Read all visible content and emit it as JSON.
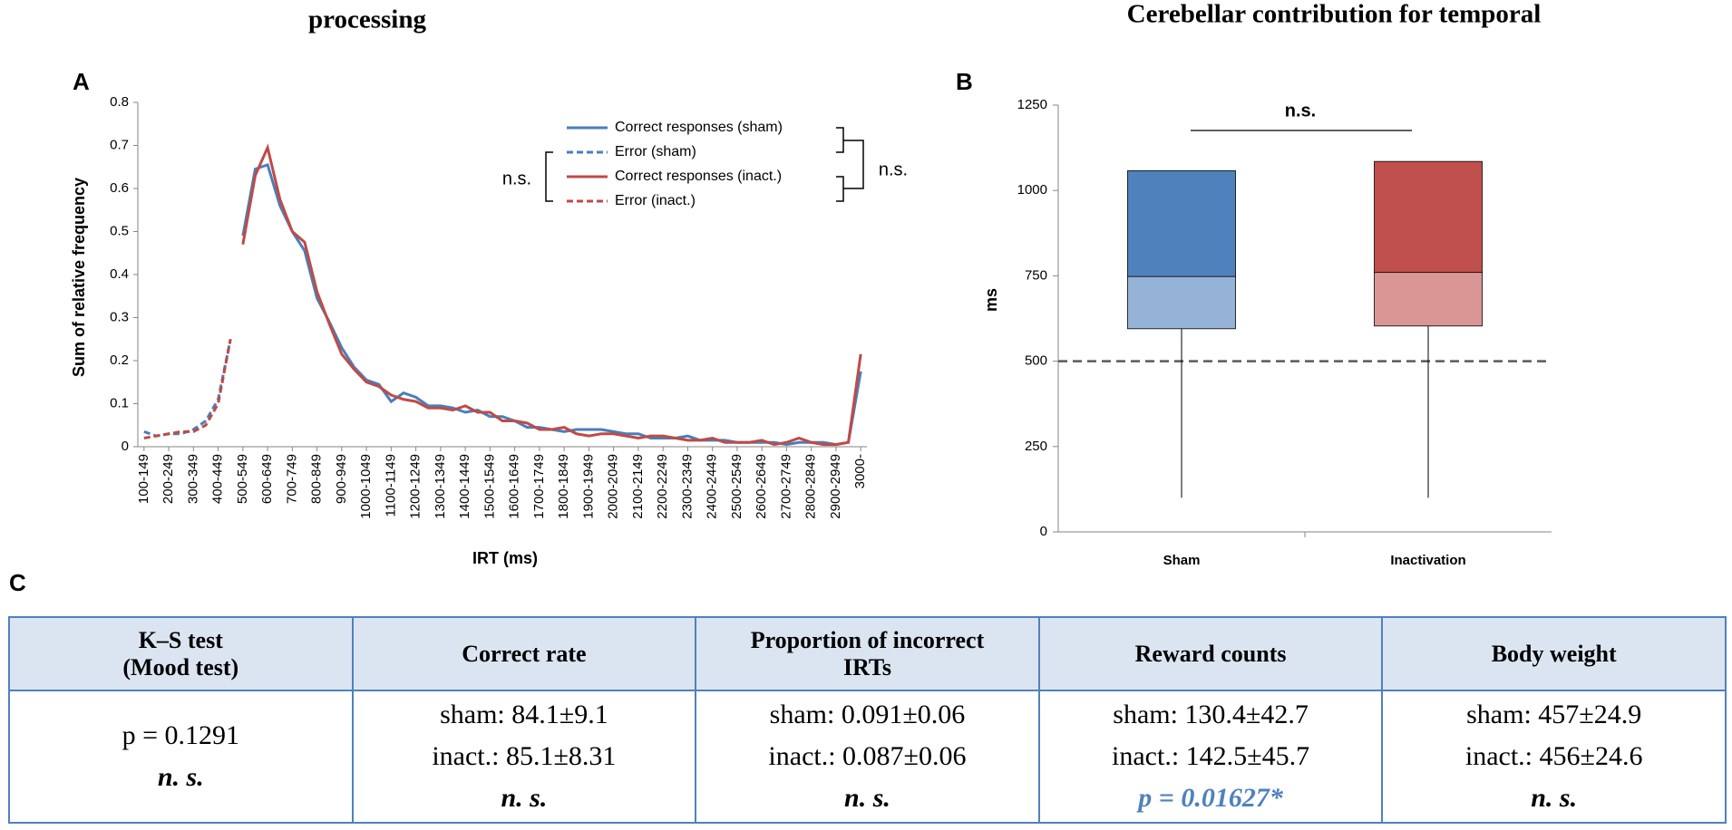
{
  "chart_data": [
    {
      "type": "line",
      "title": "processing",
      "panel": "A",
      "xlabel": "IRT (ms)",
      "ylabel": "Sum of relative frequency",
      "categories": [
        "100-149",
        null,
        "200-249",
        null,
        "300-349",
        null,
        "400-449",
        null,
        "500-549",
        null,
        "600-649",
        null,
        "700-749",
        null,
        "800-849",
        null,
        "900-949",
        null,
        "1000-1049",
        null,
        "1100-1149",
        null,
        "1200-1249",
        null,
        "1300-1349",
        null,
        "1400-1449",
        null,
        "1500-1549",
        null,
        "1600-1649",
        null,
        "1700-1749",
        null,
        "1800-1849",
        null,
        "1900-1949",
        null,
        "2000-2049",
        null,
        "2100-2149",
        null,
        "2200-2249",
        null,
        "2300-2349",
        null,
        "2400-2449",
        null,
        "2500-2549",
        null,
        "2600-2649",
        null,
        "2700-2749",
        null,
        "2800-2849",
        null,
        "2900-2949",
        null,
        "3000-"
      ],
      "series": [
        {
          "name": "Correct responses (sham)",
          "color": "#4a7ebb",
          "dashed": false,
          "values": [
            null,
            null,
            null,
            null,
            null,
            null,
            null,
            null,
            0.49,
            0.645,
            0.655,
            0.56,
            0.5,
            0.455,
            0.345,
            0.29,
            0.23,
            0.185,
            0.155,
            0.145,
            0.105,
            0.125,
            0.115,
            0.095,
            0.095,
            0.09,
            0.08,
            0.085,
            0.07,
            0.07,
            0.06,
            0.045,
            0.045,
            0.04,
            0.035,
            0.04,
            0.04,
            0.04,
            0.035,
            0.03,
            0.03,
            0.02,
            0.02,
            0.02,
            0.025,
            0.015,
            0.015,
            0.015,
            0.01,
            0.01,
            0.01,
            0.01,
            0.005,
            0.01,
            0.01,
            0.01,
            0.005,
            0.01,
            0.175
          ]
        },
        {
          "name": "Error (sham)",
          "color": "#4a7ebb",
          "dashed": true,
          "values": [
            0.035,
            0.025,
            0.03,
            0.03,
            0.04,
            0.06,
            0.11,
            0.25,
            null,
            null,
            null,
            null,
            null,
            null,
            null,
            null,
            null,
            null,
            null,
            null,
            null,
            null,
            null,
            null,
            null,
            null,
            null,
            null,
            null,
            null,
            null,
            null,
            null,
            null,
            null,
            null,
            null,
            null,
            null,
            null,
            null,
            null,
            null,
            null,
            null,
            null,
            null,
            null,
            null,
            null,
            null,
            null,
            null,
            null,
            null,
            null,
            null,
            null,
            null
          ]
        },
        {
          "name": "Correct responses (inact.)",
          "color": "#be4b48",
          "dashed": false,
          "values": [
            null,
            null,
            null,
            null,
            null,
            null,
            null,
            null,
            0.47,
            0.63,
            0.695,
            0.575,
            0.5,
            0.475,
            0.36,
            0.285,
            0.215,
            0.18,
            0.15,
            0.14,
            0.12,
            0.11,
            0.105,
            0.09,
            0.09,
            0.085,
            0.095,
            0.08,
            0.08,
            0.06,
            0.06,
            0.055,
            0.04,
            0.04,
            0.045,
            0.03,
            0.025,
            0.03,
            0.03,
            0.025,
            0.02,
            0.025,
            0.025,
            0.02,
            0.015,
            0.015,
            0.02,
            0.01,
            0.01,
            0.01,
            0.015,
            0.005,
            0.01,
            0.02,
            0.01,
            0.005,
            0.005,
            0.01,
            0.215
          ]
        },
        {
          "name": "Error (inact.)",
          "color": "#be4b48",
          "dashed": true,
          "values": [
            0.02,
            0.025,
            0.03,
            0.035,
            0.035,
            0.05,
            0.1,
            0.25,
            null,
            null,
            null,
            null,
            null,
            null,
            null,
            null,
            null,
            null,
            null,
            null,
            null,
            null,
            null,
            null,
            null,
            null,
            null,
            null,
            null,
            null,
            null,
            null,
            null,
            null,
            null,
            null,
            null,
            null,
            null,
            null,
            null,
            null,
            null,
            null,
            null,
            null,
            null,
            null,
            null,
            null,
            null,
            null,
            null,
            null,
            null,
            null,
            null,
            null,
            null
          ]
        }
      ],
      "ylim": [
        0,
        0.8
      ],
      "yticks": [
        0,
        0.1,
        0.2,
        0.3,
        0.4,
        0.5,
        0.6,
        0.7,
        0.8
      ],
      "annotations": [
        "n.s.",
        "n.s."
      ]
    },
    {
      "type": "box",
      "title": "Cerebellar contribution for temporal",
      "panel": "B",
      "ylabel": "ms",
      "categories": [
        "Sham",
        "Inactivation"
      ],
      "min": [
        100,
        100
      ],
      "q1": [
        595,
        603
      ],
      "median": [
        748,
        760
      ],
      "q3": [
        1058,
        1085
      ],
      "upper_colors": [
        "#4f81bd",
        "#c0504d"
      ],
      "lower_colors": [
        "#95b3d7",
        "#d99694"
      ],
      "reference_line": 500,
      "ylim": [
        0,
        1250
      ],
      "yticks": [
        0,
        250,
        500,
        750,
        1000,
        1250
      ],
      "annotation": "n.s."
    }
  ],
  "panel_c": "C",
  "table": {
    "header": [
      [
        "K–S test",
        "(Mood test)"
      ],
      [
        "Correct rate"
      ],
      [
        "Proportion of incorrect",
        "IRTs"
      ],
      [
        "Reward counts"
      ],
      [
        "Body weight"
      ]
    ],
    "rows": [
      [
        [
          "p = 0.1291",
          "n. s."
        ],
        [
          "sham: 84.1±9.1",
          "inact.: 85.1±8.31",
          "n. s."
        ],
        [
          "sham: 0.091±0.06",
          "inact.: 0.087±0.06",
          "n. s."
        ],
        [
          "sham: 130.4±42.7",
          "inact.: 142.5±45.7",
          "p = 0.01627*"
        ],
        [
          "sham: 457±24.9",
          "inact.: 456±24.6",
          "n. s."
        ]
      ]
    ]
  }
}
